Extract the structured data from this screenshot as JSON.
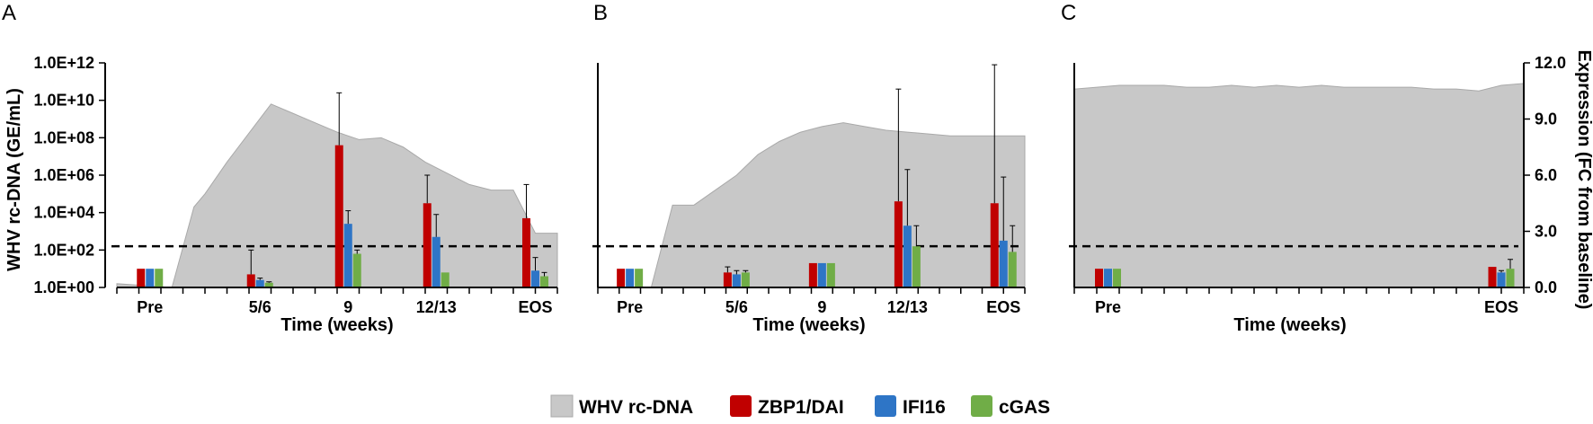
{
  "colors": {
    "area_fill": "#c8c8c8",
    "area_stroke": "#a9a9a9",
    "zbp1": "#c00000",
    "ifi16": "#2e75c6",
    "cgas": "#70ad47",
    "axis": "#000000"
  },
  "legend": [
    {
      "name": "WHV rc-DNA",
      "color": "#c8c8c8",
      "icon": "area-swatch"
    },
    {
      "name": "ZBP1/DAI",
      "color": "#c00000",
      "icon": "bar-swatch"
    },
    {
      "name": "IFI16",
      "color": "#2e75c6",
      "icon": "bar-swatch"
    },
    {
      "name": "cGAS",
      "color": "#70ad47",
      "icon": "bar-swatch"
    }
  ],
  "chart_data": [
    {
      "panel": "A",
      "type": "bar+area",
      "xlabel": "Time (weeks)",
      "ylabel_left": "WHV rc-DNA (GE/mL)",
      "left_axis": {
        "scale": "log10",
        "range": [
          0,
          12
        ],
        "ticks": [
          "1.0E+00",
          "1.0E+02",
          "1.0E+04",
          "1.0E+06",
          "1.0E+08",
          "1.0E+10",
          "1.0E+12"
        ]
      },
      "right_axis_range": [
        0,
        12
      ],
      "x_range": [
        0,
        20
      ],
      "categories": [
        "Pre",
        "5/6",
        "9",
        "12/13",
        "EOS"
      ],
      "category_x": [
        1.5,
        6.5,
        10.5,
        14.5,
        19
      ],
      "threshold_log10": 2.2,
      "area": {
        "name": "WHV rc-DNA",
        "x": [
          0.0,
          2.5,
          3.5,
          4.0,
          5.0,
          7.0,
          8.0,
          9.0,
          10.0,
          11.0,
          12.0,
          13.0,
          14.0,
          15.0,
          16.0,
          17.0,
          18.0,
          19.0,
          20.0
        ],
        "log10": [
          0.2,
          0.0,
          4.3,
          5.0,
          6.7,
          9.8,
          9.3,
          8.8,
          8.3,
          7.9,
          8.0,
          7.5,
          6.7,
          6.1,
          5.5,
          5.2,
          5.2,
          2.9,
          2.9
        ]
      },
      "series": [
        {
          "name": "ZBP1/DAI",
          "values": [
            1.0,
            0.7,
            7.6,
            4.5,
            3.7
          ],
          "err_hi": [
            1.0,
            2.0,
            10.4,
            6.0,
            5.5
          ]
        },
        {
          "name": "IFI16",
          "values": [
            1.0,
            0.4,
            3.4,
            2.7,
            0.9
          ],
          "err_hi": [
            1.0,
            0.5,
            4.1,
            3.9,
            1.6
          ]
        },
        {
          "name": "cGAS",
          "values": [
            1.0,
            0.25,
            1.8,
            0.8,
            0.6
          ],
          "err_hi": [
            1.0,
            0.3,
            2.0,
            0.8,
            0.8
          ]
        }
      ]
    },
    {
      "panel": "B",
      "type": "bar+area",
      "xlabel": "Time (weeks)",
      "right_axis_range": [
        0,
        12
      ],
      "x_range": [
        0,
        20
      ],
      "categories": [
        "Pre",
        "5/6",
        "9",
        "12/13",
        "EOS"
      ],
      "category_x": [
        1.5,
        6.5,
        10.5,
        14.5,
        19
      ],
      "threshold_log10": 2.2,
      "area": {
        "name": "WHV rc-DNA",
        "x": [
          0.0,
          2.5,
          3.5,
          4.5,
          5.5,
          6.5,
          7.5,
          8.5,
          9.5,
          10.5,
          11.5,
          12.5,
          13.5,
          14.5,
          15.5,
          16.5,
          17.5,
          18.5,
          20.0
        ],
        "log10": [
          0.0,
          0.0,
          4.4,
          4.4,
          5.2,
          6.0,
          7.1,
          7.8,
          8.3,
          8.6,
          8.8,
          8.6,
          8.4,
          8.3,
          8.2,
          8.1,
          8.1,
          8.1,
          8.1
        ]
      },
      "series": [
        {
          "name": "ZBP1/DAI",
          "values": [
            1.0,
            0.8,
            1.3,
            4.6,
            4.5
          ],
          "err_hi": [
            1.0,
            1.1,
            1.3,
            10.6,
            11.9
          ]
        },
        {
          "name": "IFI16",
          "values": [
            1.0,
            0.7,
            1.3,
            3.3,
            2.5
          ],
          "err_hi": [
            1.0,
            0.9,
            1.3,
            6.3,
            5.9
          ]
        },
        {
          "name": "cGAS",
          "values": [
            1.0,
            0.8,
            1.3,
            2.2,
            1.9
          ],
          "err_hi": [
            1.0,
            0.9,
            1.3,
            3.3,
            3.3
          ]
        }
      ]
    },
    {
      "panel": "C",
      "type": "bar+area",
      "xlabel": "Time (weeks)",
      "ylabel_right": "Expression (FC from baseline)",
      "right_axis": {
        "range": [
          0,
          12
        ],
        "ticks": [
          "0.0",
          "3.0",
          "6.0",
          "9.0",
          "12.0"
        ]
      },
      "x_range": [
        0,
        20
      ],
      "categories": [
        "Pre",
        "EOS"
      ],
      "category_x": [
        1.5,
        19
      ],
      "threshold_log10": 2.2,
      "area": {
        "name": "WHV rc-DNA",
        "x": [
          0,
          1,
          2,
          3,
          4,
          5,
          6,
          7,
          8,
          9,
          10,
          11,
          12,
          13,
          14,
          15,
          16,
          17,
          18,
          19,
          20
        ],
        "log10": [
          10.6,
          10.7,
          10.8,
          10.8,
          10.8,
          10.7,
          10.7,
          10.8,
          10.7,
          10.8,
          10.7,
          10.8,
          10.7,
          10.7,
          10.7,
          10.7,
          10.6,
          10.6,
          10.5,
          10.8,
          10.9
        ]
      },
      "series": [
        {
          "name": "ZBP1/DAI",
          "values": [
            1.0,
            1.1
          ],
          "err_hi": [
            1.0,
            1.1
          ]
        },
        {
          "name": "IFI16",
          "values": [
            1.0,
            0.8
          ],
          "err_hi": [
            1.0,
            0.9
          ]
        },
        {
          "name": "cGAS",
          "values": [
            1.0,
            1.0
          ],
          "err_hi": [
            1.0,
            1.5
          ]
        }
      ]
    }
  ]
}
